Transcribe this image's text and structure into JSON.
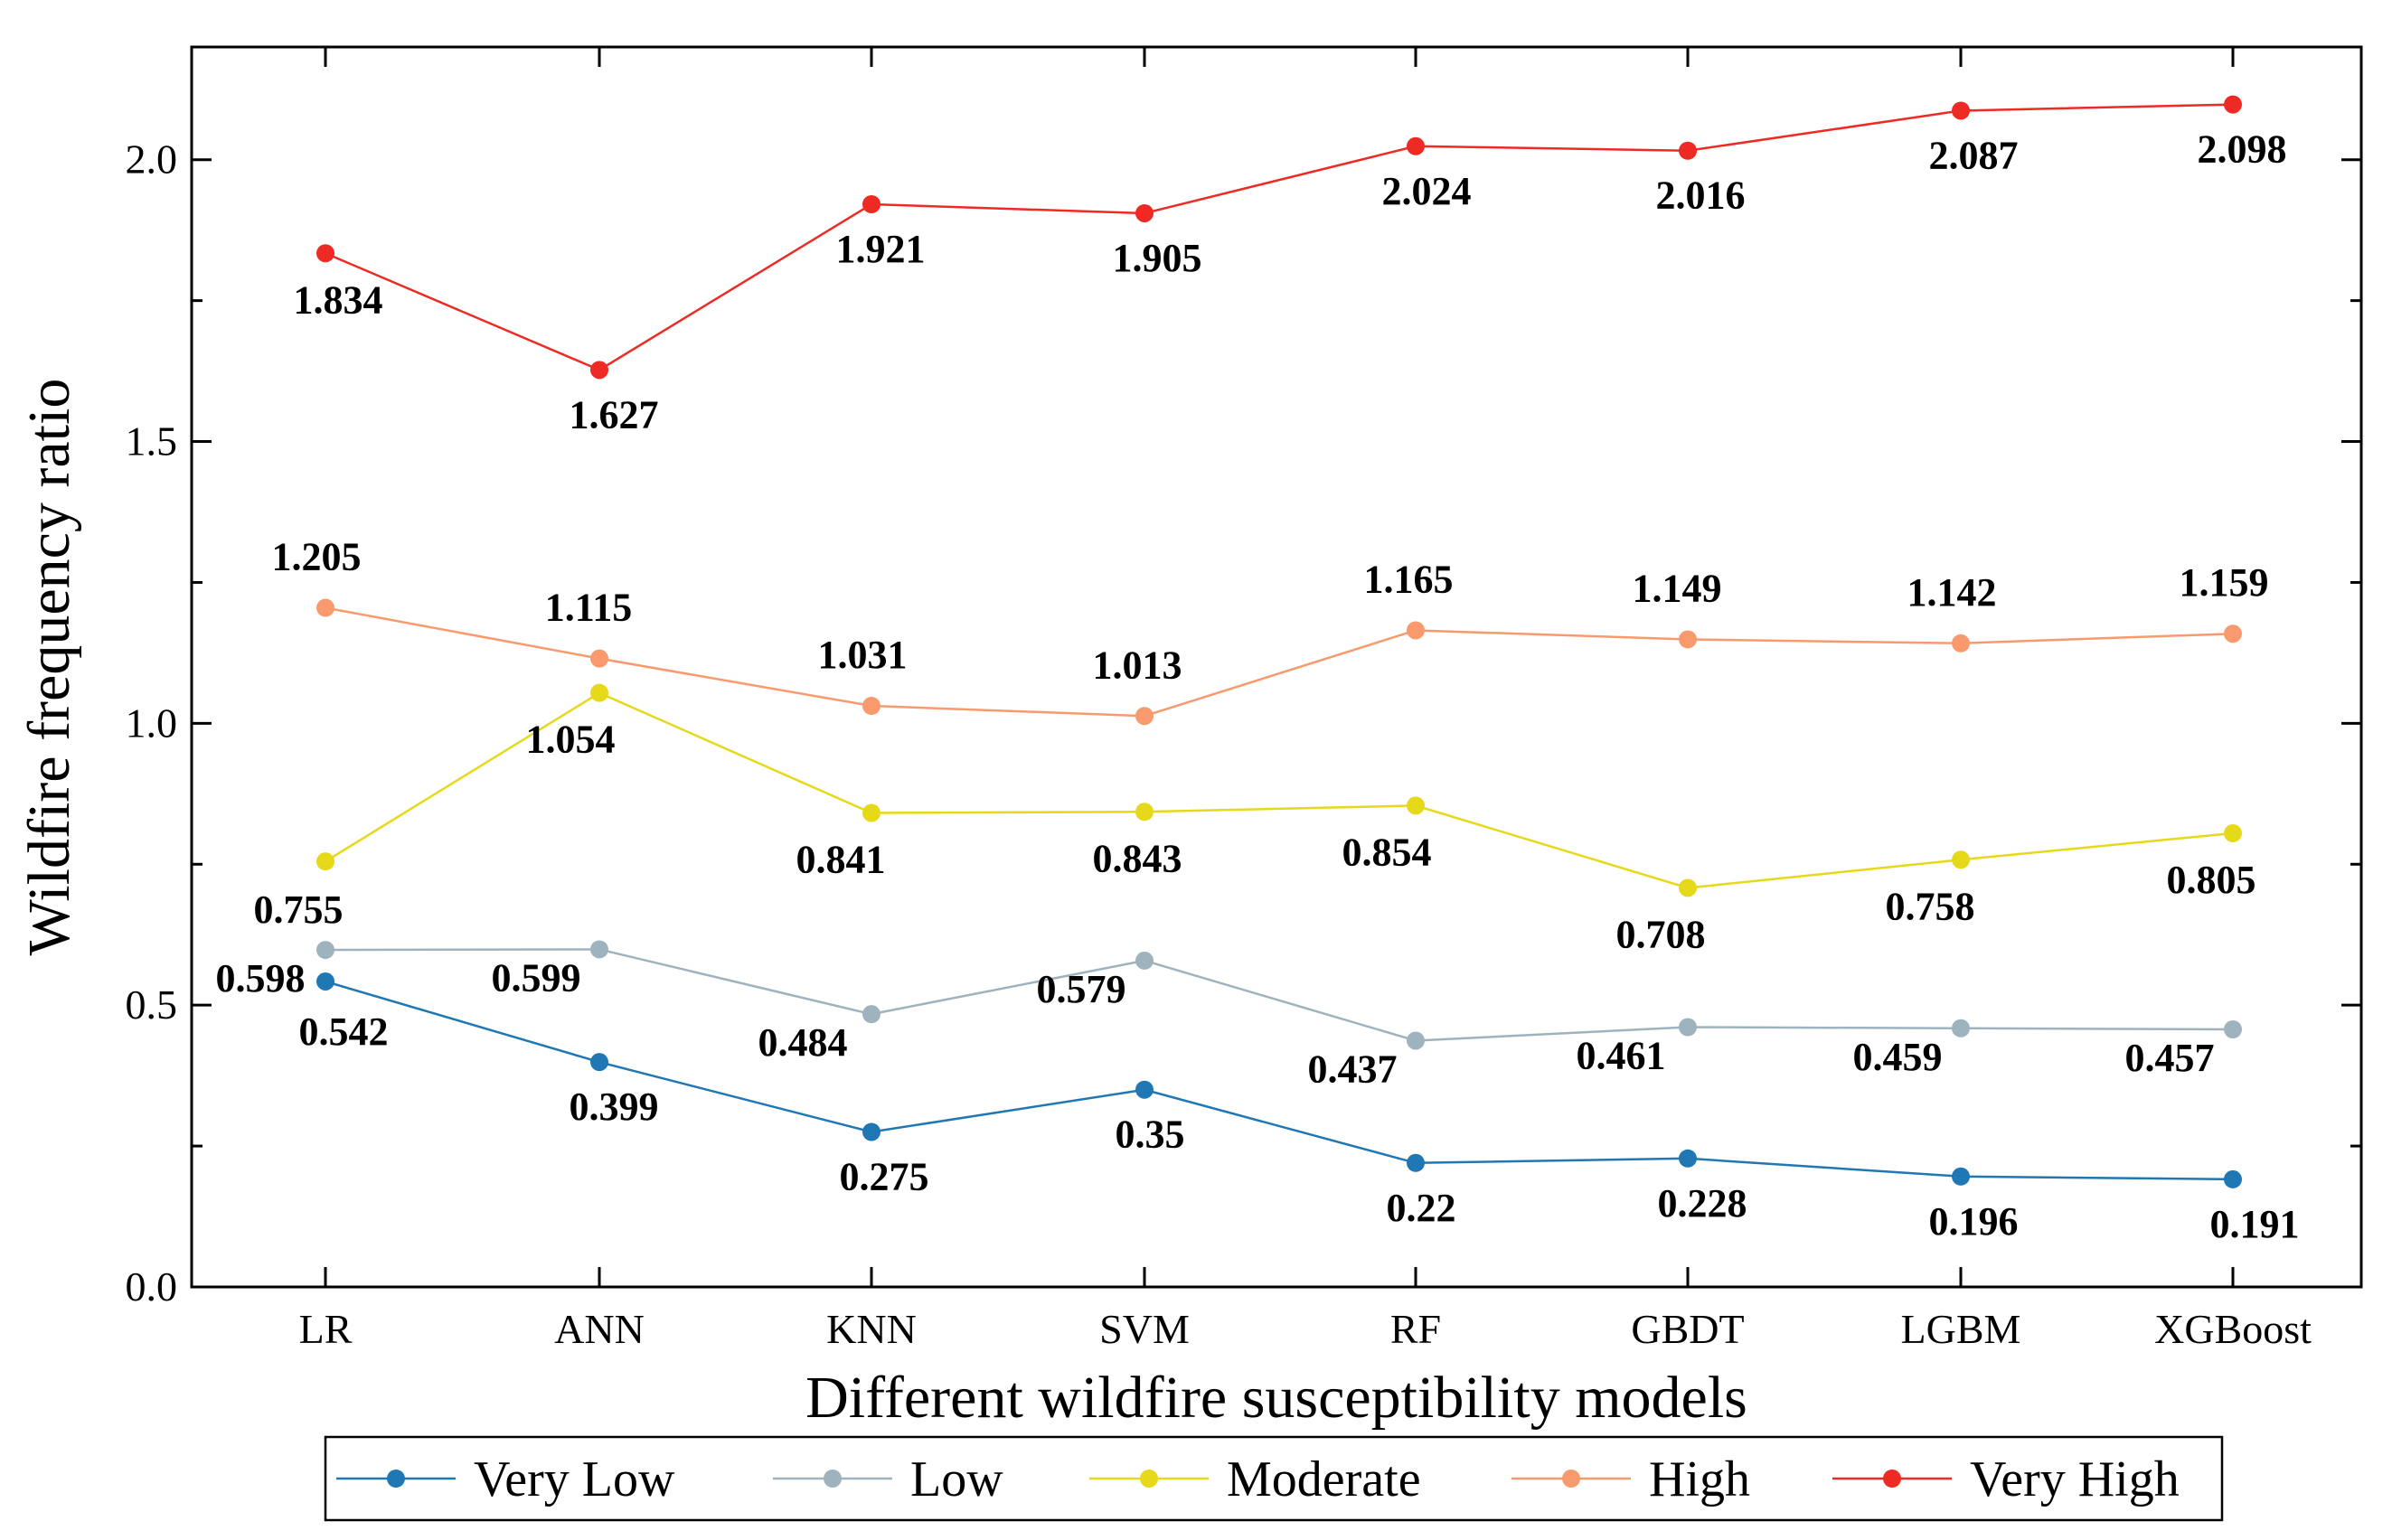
{
  "chart_data": {
    "type": "line",
    "title": "",
    "xlabel": "Different wildfire susceptibility models",
    "ylabel": "Wildfire frequency ratio",
    "categories": [
      "LR",
      "ANN",
      "KNN",
      "SVM",
      "RF",
      "GBDT",
      "LGBM",
      "XGBoost"
    ],
    "ylim": [
      0,
      2.2
    ],
    "yticks": [
      0.0,
      0.5,
      1.0,
      1.5,
      2.0
    ],
    "ytick_labels": [
      "0.0",
      "0.5",
      "1.0",
      "1.5",
      "2.0"
    ],
    "grid": false,
    "legend_position": "bottom",
    "series": [
      {
        "name": "Very Low",
        "color": "#1f77b4",
        "values": [
          0.542,
          0.399,
          0.275,
          0.35,
          0.22,
          0.228,
          0.196,
          0.191
        ],
        "labels": [
          "0.542",
          "0.399",
          "0.275",
          "0.35",
          "0.22",
          "0.228",
          "0.196",
          "0.191"
        ]
      },
      {
        "name": "Low",
        "color": "#9fb3bf",
        "values": [
          0.598,
          0.599,
          0.484,
          0.579,
          0.437,
          0.461,
          0.459,
          0.457
        ],
        "labels": [
          "0.598",
          "0.599",
          "0.484",
          "0.579",
          "0.437",
          "0.461",
          "0.459",
          "0.457"
        ]
      },
      {
        "name": "Moderate",
        "color": "#e6d91a",
        "values": [
          0.755,
          1.054,
          0.841,
          0.843,
          0.854,
          0.708,
          0.758,
          0.805
        ],
        "labels": [
          "0.755",
          "1.054",
          "0.841",
          "0.843",
          "0.854",
          "0.708",
          "0.758",
          "0.805"
        ]
      },
      {
        "name": "High",
        "color": "#f99a6e",
        "values": [
          1.205,
          1.115,
          1.031,
          1.013,
          1.165,
          1.149,
          1.142,
          1.159
        ],
        "labels": [
          "1.205",
          "1.115",
          "1.031",
          "1.013",
          "1.165",
          "1.149",
          "1.142",
          "1.159"
        ]
      },
      {
        "name": "Very High",
        "color": "#ee2a24",
        "values": [
          1.834,
          1.627,
          1.921,
          1.905,
          2.024,
          2.016,
          2.087,
          2.098
        ],
        "labels": [
          "1.834",
          "1.627",
          "1.921",
          "1.905",
          "2.024",
          "2.016",
          "2.087",
          "2.098"
        ]
      }
    ]
  }
}
